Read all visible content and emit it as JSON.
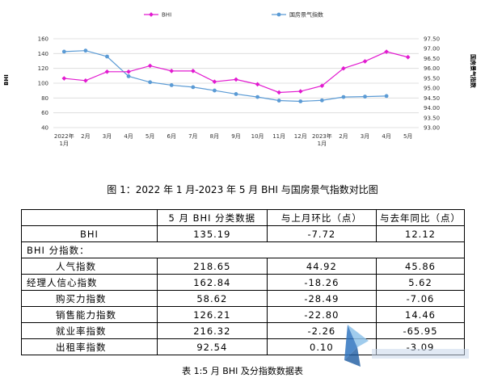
{
  "chart_data": {
    "type": "line",
    "categories": [
      "2022年\n1月",
      "2月",
      "3月",
      "4月",
      "5月",
      "6月",
      "7月",
      "8月",
      "9月",
      "10月",
      "11月",
      "12月",
      "2023年\n1月",
      "2月",
      "3月",
      "4月",
      "5月"
    ],
    "y_left": {
      "label": "BHI",
      "ticks": [
        40,
        60,
        80,
        100,
        120,
        140,
        160
      ],
      "range": [
        40,
        160
      ]
    },
    "y_right": {
      "label": "国房景气指数",
      "ticks": [
        "93.00",
        "93.50",
        "94.00",
        "94.50",
        "95.00",
        "95.50",
        "96.00",
        "96.50",
        "97.00",
        "97.50"
      ],
      "range": [
        93.0,
        97.5
      ]
    },
    "series": [
      {
        "name": "BHI",
        "axis": "left",
        "color": "#e21ad0",
        "values": [
          106.5,
          103.5,
          115.5,
          115.5,
          123.5,
          116.5,
          116.5,
          102,
          105,
          98.5,
          87.5,
          89,
          96.5,
          120,
          129.5,
          142.5,
          135.19
        ]
      },
      {
        "name": "国房景气指数",
        "axis": "right",
        "color": "#5b9bd5",
        "values": [
          96.85,
          96.9,
          96.6,
          95.6,
          95.3,
          95.15,
          95.05,
          94.88,
          94.7,
          94.55,
          94.37,
          94.33,
          94.38,
          94.55,
          94.57,
          94.6,
          null
        ]
      }
    ],
    "grid": true,
    "legend": "top"
  },
  "figure_caption": "图 1：2022 年 1 月-2023 年 5 月 BHI 与国房景气指数对比图",
  "table": {
    "headers": [
      "",
      "5 月 BHI 分类数据",
      "与上月环比（点）",
      "与去年同比（点）"
    ],
    "rows": [
      {
        "name": "BHI",
        "cells": [
          "135.19",
          "-7.72",
          "12.12"
        ],
        "type": "label"
      },
      {
        "name": "BHI 分指数：",
        "cells": [],
        "type": "section"
      },
      {
        "name": "人气指数",
        "cells": [
          "218.65",
          "44.92",
          "45.86"
        ],
        "type": "indent"
      },
      {
        "name": "经理人信心指数",
        "cells": [
          "162.84",
          "-18.26",
          "5.62"
        ],
        "type": "plain"
      },
      {
        "name": "购买力指数",
        "cells": [
          "58.62",
          "-28.49",
          "-7.06"
        ],
        "type": "indent"
      },
      {
        "name": "销售能力指数",
        "cells": [
          "126.21",
          "-22.80",
          "14.46"
        ],
        "type": "indent"
      },
      {
        "name": "就业率指数",
        "cells": [
          "216.32",
          "-2.26",
          "-65.95"
        ],
        "type": "indent"
      },
      {
        "name": "出租率指数",
        "cells": [
          "92.54",
          "0.10",
          "-3.09"
        ],
        "type": "indent"
      }
    ]
  },
  "table_caption": "表 1:5 月 BHI 及分指数数据表"
}
